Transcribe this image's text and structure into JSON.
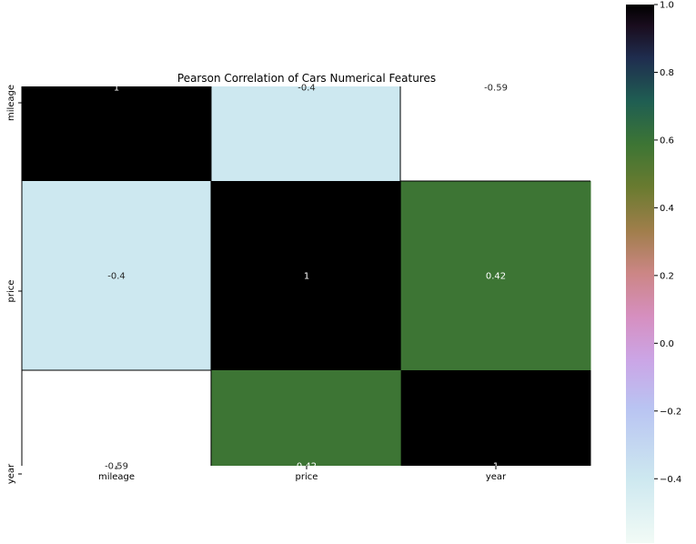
{
  "chart_data": {
    "type": "heatmap",
    "title": "Pearson Correlation of Cars Numerical Features",
    "xlabel": "",
    "ylabel": "",
    "x_categories": [
      "mileage",
      "price",
      "year"
    ],
    "y_categories": [
      "mileage",
      "price",
      "year"
    ],
    "values": [
      [
        1,
        -0.4,
        -0.59
      ],
      [
        -0.4,
        1,
        0.42
      ],
      [
        -0.59,
        0.42,
        1
      ]
    ],
    "annotations": [
      [
        "1",
        "-0.4",
        "-0.59"
      ],
      [
        "-0.4",
        "1",
        "0.42"
      ],
      [
        "-0.59",
        "0.42",
        "1"
      ]
    ],
    "colormap": "cubehelix_r",
    "colorbar": {
      "range": [
        -0.59,
        1.0
      ],
      "ticks": [
        1.0,
        0.8,
        0.6,
        0.4,
        0.2,
        0.0,
        -0.2,
        -0.4
      ],
      "tick_labels": [
        "1.0",
        "0.8",
        "0.6",
        "0.4",
        "0.2",
        "0.0",
        "−0.2",
        "−0.4"
      ]
    },
    "cell_colors": {
      "1": "#000000",
      "0.42": "#3d7534",
      "-0.4": "#cde8f0",
      "-0.59": "#ffffff"
    }
  }
}
